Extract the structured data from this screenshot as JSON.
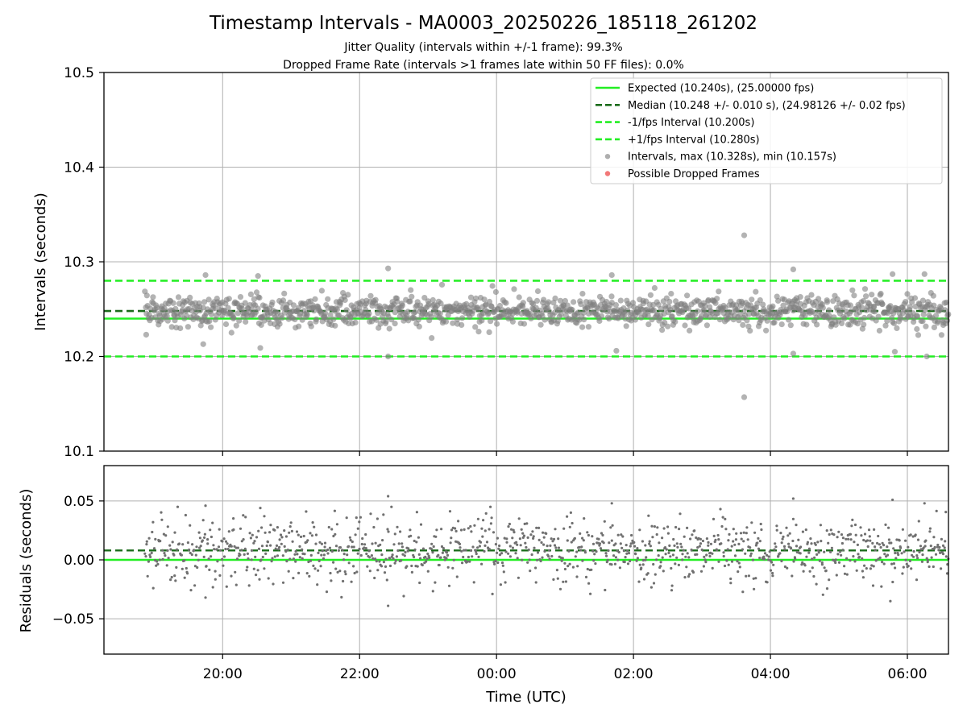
{
  "title": "Timestamp Intervals - MA0003_20250226_185118_261202",
  "subtitle_jitter": "Jitter Quality (intervals within +/-1 frame): 99.3%",
  "subtitle_dropped": "Dropped Frame Rate (intervals >1 frames late within 50 FF files): 0.0%",
  "colors": {
    "expected": "#22ee22",
    "median": "#1a6b1a",
    "points": "#808080",
    "dropped": "#f06060"
  },
  "chart_data": [
    {
      "type": "scatter",
      "name": "intervals",
      "xlabel": "",
      "ylabel": "Intervals (seconds)",
      "ylim": [
        10.1,
        10.5
      ],
      "yticks": [
        "10.1",
        "10.2",
        "10.3",
        "10.4",
        "10.5"
      ],
      "x_range_hours": [
        "18:16",
        "06:36"
      ],
      "grid": true,
      "legend_position": "top-right",
      "lines": {
        "expected": 10.24,
        "median": 10.248,
        "minus_one_fps": 10.2,
        "plus_one_fps": 10.28
      },
      "data_start": "18:52",
      "data_end": "06:36",
      "interval_mean": 10.248,
      "interval_spread": 0.01,
      "outliers": [
        {
          "time": "18:53",
          "value": 10.223
        },
        {
          "time": "19:43",
          "value": 10.213
        },
        {
          "time": "19:45",
          "value": 10.286
        },
        {
          "time": "20:31",
          "value": 10.285
        },
        {
          "time": "20:33",
          "value": 10.209
        },
        {
          "time": "22:25",
          "value": 10.293
        },
        {
          "time": "22:25",
          "value": 10.2
        },
        {
          "time": "01:41",
          "value": 10.286
        },
        {
          "time": "01:45",
          "value": 10.206
        },
        {
          "time": "03:37",
          "value": 10.328
        },
        {
          "time": "03:37",
          "value": 10.157
        },
        {
          "time": "04:20",
          "value": 10.292
        },
        {
          "time": "04:20",
          "value": 10.203
        },
        {
          "time": "05:47",
          "value": 10.287
        },
        {
          "time": "05:49",
          "value": 10.205
        },
        {
          "time": "06:15",
          "value": 10.287
        },
        {
          "time": "06:17",
          "value": 10.2
        }
      ],
      "legend": [
        {
          "label": "Expected (10.240s), (25.00000 fps)",
          "style": "solid",
          "color": "#22ee22"
        },
        {
          "label": "Median (10.248 +/- 0.010 s), (24.98126 +/- 0.02 fps)",
          "style": "dashed",
          "color": "#1a6b1a"
        },
        {
          "label": "-1/fps Interval (10.200s)",
          "style": "dashed",
          "color": "#22ee22"
        },
        {
          "label": "+1/fps Interval (10.280s)",
          "style": "dashed",
          "color": "#22ee22"
        },
        {
          "label": "Intervals, max (10.328s), min (10.157s)",
          "style": "marker",
          "color": "#a0a0a0"
        },
        {
          "label": "Possible Dropped Frames",
          "style": "marker",
          "color": "#f06060"
        }
      ]
    },
    {
      "type": "scatter",
      "name": "residuals",
      "xlabel": "Time (UTC)",
      "ylabel": "Residuals (seconds)",
      "ylim": [
        -0.08,
        0.08
      ],
      "yticks": [
        "−0.05",
        "0.00",
        "0.05"
      ],
      "ytick_values": [
        -0.05,
        0,
        0.05
      ],
      "xticks": [
        "20:00",
        "22:00",
        "00:00",
        "02:00",
        "04:00",
        "06:00"
      ],
      "grid": true,
      "lines": {
        "expected": 0.0,
        "median": 0.008
      },
      "residual_spread": 0.014,
      "outliers": [
        {
          "time": "19:45",
          "value": 0.046
        },
        {
          "time": "19:45",
          "value": -0.032
        },
        {
          "time": "20:33",
          "value": 0.044
        },
        {
          "time": "22:25",
          "value": 0.054
        },
        {
          "time": "22:25",
          "value": -0.039
        },
        {
          "time": "01:41",
          "value": 0.048
        },
        {
          "time": "04:20",
          "value": 0.052
        },
        {
          "time": "05:47",
          "value": 0.051
        },
        {
          "time": "06:15",
          "value": 0.048
        }
      ]
    }
  ]
}
